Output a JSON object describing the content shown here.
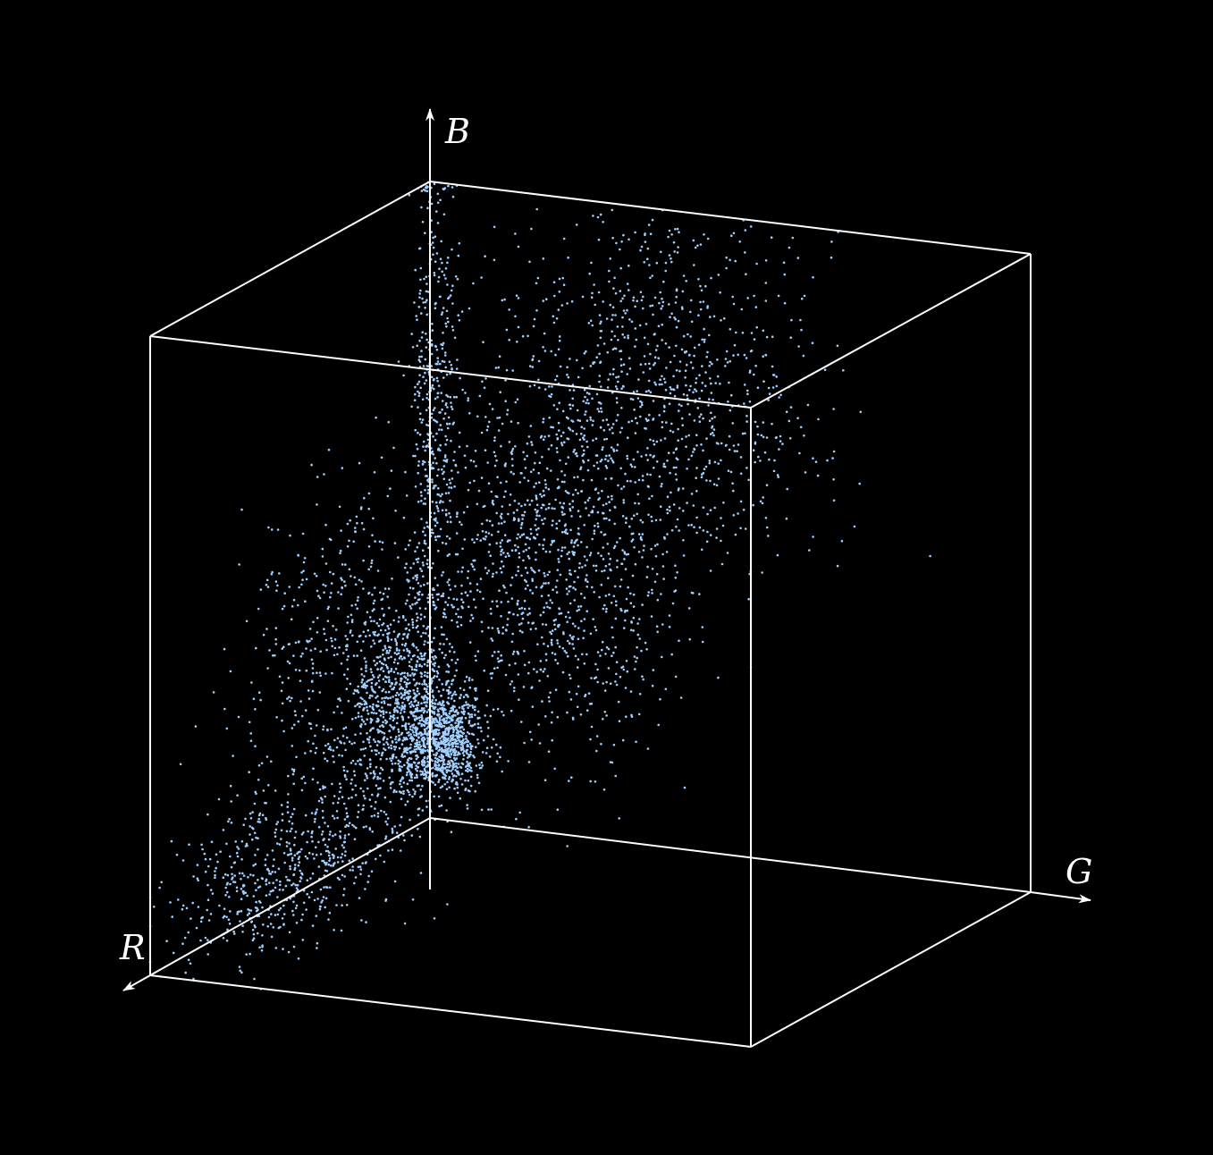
{
  "chart_data": {
    "type": "scatter",
    "dimensions": 3,
    "axes": {
      "x": {
        "label": "R"
      },
      "y": {
        "label": "G"
      },
      "z": {
        "label": "B"
      }
    },
    "grid": false,
    "legend": "none",
    "colors": {
      "background": "#000000",
      "box": "#ffffff",
      "point": "#9fd0ff"
    },
    "clusters": [
      {
        "center": [
          0.06,
          0.05,
          0.14
        ],
        "spread": [
          0.03,
          0.03,
          0.04
        ],
        "count": 900
      },
      {
        "center": [
          0.16,
          0.02,
          0.22
        ],
        "spread": [
          0.07,
          0.03,
          0.09
        ],
        "count": 800
      },
      {
        "center": [
          0.03,
          0.02,
          0.62
        ],
        "spread": [
          0.02,
          0.02,
          0.22
        ],
        "count": 500
      },
      {
        "center": [
          0.1,
          0.25,
          0.45
        ],
        "spread": [
          0.06,
          0.1,
          0.15
        ],
        "count": 1100
      },
      {
        "center": [
          0.12,
          0.45,
          0.75
        ],
        "spread": [
          0.07,
          0.12,
          0.14
        ],
        "count": 900
      },
      {
        "center": [
          0.7,
          0.08,
          0.1
        ],
        "spread": [
          0.16,
          0.06,
          0.06
        ],
        "count": 550
      },
      {
        "center": [
          0.45,
          0.05,
          0.35
        ],
        "spread": [
          0.14,
          0.04,
          0.14
        ],
        "count": 500
      }
    ]
  }
}
